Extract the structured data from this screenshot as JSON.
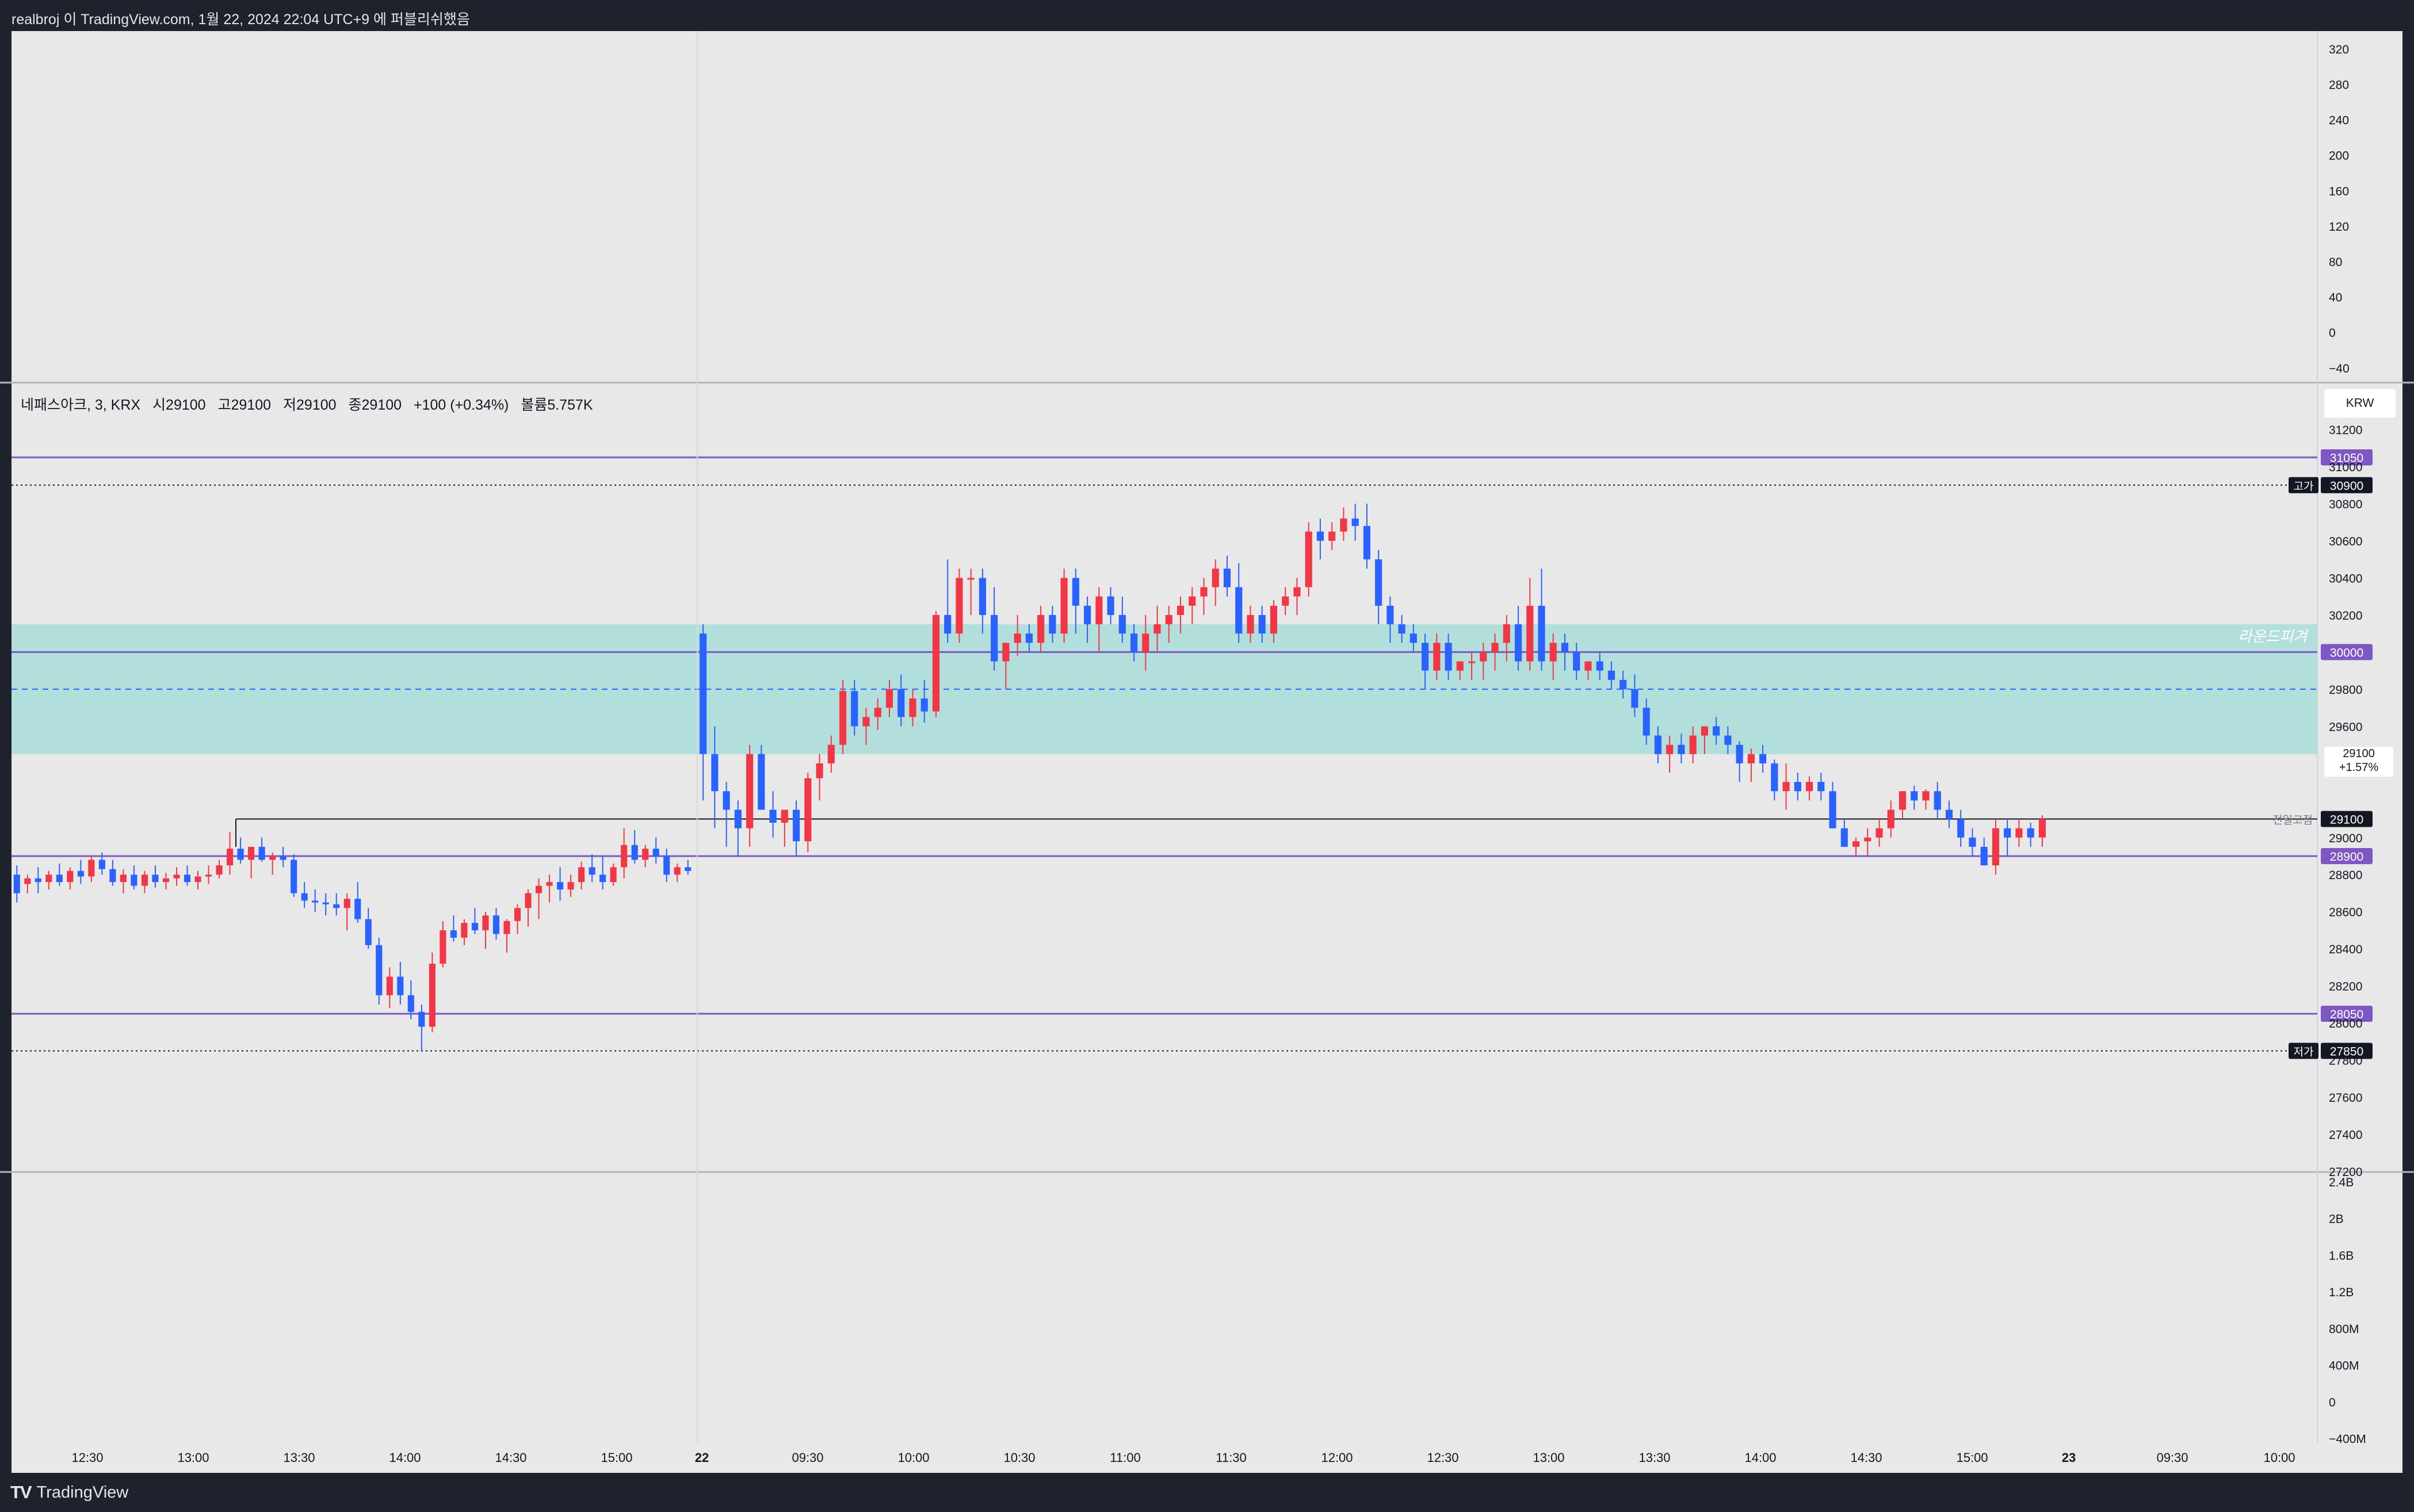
{
  "header": {
    "publish_text": "realbroj 이 TradingView.com, 1월 22, 2024 22:04 UTC+9 에 퍼블리쉬했음"
  },
  "footer": {
    "brand": "TradingView",
    "logo": "TV"
  },
  "legend": {
    "symbol": "네패스아크, 3, KRX",
    "open": "시29100",
    "high": "고29100",
    "low": "저29100",
    "close": "종29100",
    "change": "+100 (+0.34%)",
    "volume": "볼륨5.757K"
  },
  "currency": "KRW",
  "current_price": {
    "price": "29100",
    "change": "+1.57%"
  },
  "colors": {
    "up": "#f23645",
    "down": "#2962ff",
    "zone": "#b2dfdb",
    "level": "#7e57c2",
    "background": "#e8e8e8"
  },
  "chart_data": [
    {
      "type": "line",
      "panel": "upper-indicator",
      "y_ticks": [
        "320",
        "280",
        "240",
        "200",
        "160",
        "120",
        "80",
        "40",
        "0",
        "−40"
      ],
      "ylim": [
        -56,
        340
      ]
    },
    {
      "type": "candlestick",
      "panel": "price",
      "ylim": [
        27200,
        31450
      ],
      "y_ticks": [
        "31200",
        "31000",
        "30800",
        "30600",
        "30400",
        "30200",
        "29800",
        "29600",
        "29400",
        "29000",
        "28800",
        "28600",
        "28400",
        "28200",
        "28000",
        "27800",
        "27600",
        "27400",
        "27200"
      ],
      "x_ticks": [
        "12:30",
        "13:00",
        "13:30",
        "14:00",
        "14:30",
        "15:00",
        "22",
        "09:30",
        "10:00",
        "10:30",
        "11:00",
        "11:30",
        "12:00",
        "12:30",
        "13:00",
        "13:30",
        "14:00",
        "14:30",
        "15:00",
        "23",
        "09:30",
        "10:00"
      ],
      "levels": [
        {
          "price": 31050,
          "label": "31050",
          "style": "solid"
        },
        {
          "price": 30900,
          "label": "30900",
          "tag": "고가",
          "style": "dotted"
        },
        {
          "price": 30000,
          "label": "30000",
          "style": "solid"
        },
        {
          "price": 29100,
          "label": "29100",
          "tag": "전일고점",
          "style": "solid-black"
        },
        {
          "price": 28900,
          "label": "28900",
          "style": "solid"
        },
        {
          "price": 28050,
          "label": "28050",
          "style": "solid"
        },
        {
          "price": 27850,
          "label": "27850",
          "tag": "저가",
          "style": "dotted"
        }
      ],
      "zone": {
        "from": 29450,
        "to": 30150,
        "mid": 29800,
        "label": "라운드피겨"
      },
      "candles": [
        [
          28800,
          28850,
          28650,
          28700
        ],
        [
          28750,
          28800,
          28700,
          28780
        ],
        [
          28780,
          28840,
          28700,
          28760
        ],
        [
          28760,
          28820,
          28720,
          28800
        ],
        [
          28800,
          28860,
          28740,
          28760
        ],
        [
          28760,
          28840,
          28720,
          28820
        ],
        [
          28820,
          28880,
          28750,
          28790
        ],
        [
          28790,
          28900,
          28760,
          28880
        ],
        [
          28880,
          28920,
          28800,
          28830
        ],
        [
          28830,
          28880,
          28740,
          28760
        ],
        [
          28760,
          28830,
          28700,
          28800
        ],
        [
          28800,
          28850,
          28720,
          28740
        ],
        [
          28740,
          28820,
          28700,
          28800
        ],
        [
          28800,
          28850,
          28730,
          28760
        ],
        [
          28760,
          28810,
          28720,
          28780
        ],
        [
          28780,
          28840,
          28740,
          28800
        ],
        [
          28800,
          28850,
          28740,
          28760
        ],
        [
          28760,
          28820,
          28720,
          28790
        ],
        [
          28790,
          28850,
          28750,
          28800
        ],
        [
          28800,
          28880,
          28780,
          28850
        ],
        [
          28850,
          29030,
          28800,
          28940
        ],
        [
          28940,
          29000,
          28860,
          28880
        ],
        [
          28880,
          28920,
          28780,
          28950
        ],
        [
          28950,
          29000,
          28870,
          28880
        ],
        [
          28880,
          28920,
          28800,
          28900
        ],
        [
          28900,
          28950,
          28840,
          28880
        ],
        [
          28880,
          28910,
          28680,
          28700
        ],
        [
          28700,
          28760,
          28620,
          28660
        ],
        [
          28660,
          28720,
          28600,
          28650
        ],
        [
          28650,
          28700,
          28580,
          28640
        ],
        [
          28640,
          28700,
          28580,
          28620
        ],
        [
          28620,
          28700,
          28500,
          28670
        ],
        [
          28670,
          28760,
          28540,
          28560
        ],
        [
          28560,
          28620,
          28400,
          28420
        ],
        [
          28420,
          28460,
          28100,
          28150
        ],
        [
          28150,
          28300,
          28080,
          28250
        ],
        [
          28250,
          28330,
          28100,
          28150
        ],
        [
          28150,
          28230,
          28020,
          28060
        ],
        [
          28060,
          28100,
          27850,
          27980
        ],
        [
          27980,
          28380,
          27950,
          28320
        ],
        [
          28320,
          28550,
          28300,
          28500
        ],
        [
          28500,
          28580,
          28440,
          28460
        ],
        [
          28460,
          28560,
          28420,
          28540
        ],
        [
          28540,
          28620,
          28480,
          28500
        ],
        [
          28500,
          28600,
          28400,
          28580
        ],
        [
          28580,
          28620,
          28450,
          28480
        ],
        [
          28480,
          28560,
          28380,
          28550
        ],
        [
          28550,
          28640,
          28480,
          28620
        ],
        [
          28620,
          28720,
          28520,
          28700
        ],
        [
          28700,
          28780,
          28560,
          28740
        ],
        [
          28740,
          28800,
          28650,
          28760
        ],
        [
          28760,
          28840,
          28660,
          28720
        ],
        [
          28720,
          28800,
          28680,
          28760
        ],
        [
          28760,
          28870,
          28720,
          28840
        ],
        [
          28840,
          28910,
          28760,
          28800
        ],
        [
          28800,
          28900,
          28720,
          28760
        ],
        [
          28760,
          28860,
          28740,
          28840
        ],
        [
          28840,
          29050,
          28780,
          28960
        ],
        [
          28960,
          29040,
          28860,
          28880
        ],
        [
          28880,
          28960,
          28840,
          28940
        ],
        [
          28940,
          29000,
          28860,
          28900
        ],
        [
          28900,
          28940,
          28760,
          28800
        ],
        [
          28800,
          28860,
          28760,
          28840
        ],
        [
          28840,
          28880,
          28800,
          28820
        ]
      ],
      "candles_day2": [
        [
          30100,
          30150,
          29200,
          29450
        ],
        [
          29450,
          29600,
          29050,
          29250
        ],
        [
          29250,
          29300,
          28950,
          29150
        ],
        [
          29150,
          29200,
          28900,
          29050
        ],
        [
          29050,
          29500,
          28950,
          29450
        ],
        [
          29450,
          29500,
          29150,
          29150
        ],
        [
          29150,
          29250,
          29000,
          29080
        ],
        [
          29080,
          29120,
          28950,
          29150
        ],
        [
          29150,
          29200,
          28900,
          28980
        ],
        [
          28980,
          29350,
          28920,
          29320
        ],
        [
          29320,
          29450,
          29200,
          29400
        ],
        [
          29400,
          29550,
          29350,
          29500
        ],
        [
          29500,
          29850,
          29450,
          29790
        ],
        [
          29790,
          29850,
          29550,
          29600
        ],
        [
          29600,
          29700,
          29500,
          29650
        ],
        [
          29650,
          29750,
          29580,
          29700
        ],
        [
          29700,
          29850,
          29650,
          29800
        ],
        [
          29800,
          29880,
          29600,
          29650
        ],
        [
          29650,
          29800,
          29600,
          29750
        ],
        [
          29750,
          29850,
          29620,
          29680
        ],
        [
          29680,
          30220,
          29650,
          30200
        ],
        [
          30200,
          30500,
          30050,
          30100
        ],
        [
          30100,
          30450,
          30050,
          30400
        ],
        [
          30400,
          30450,
          30200,
          30400
        ],
        [
          30400,
          30450,
          30100,
          30200
        ],
        [
          30200,
          30350,
          29900,
          29950
        ],
        [
          29950,
          30000,
          29800,
          30050
        ],
        [
          30050,
          30200,
          29980,
          30100
        ],
        [
          30100,
          30150,
          30000,
          30050
        ],
        [
          30050,
          30250,
          30000,
          30200
        ],
        [
          30200,
          30250,
          30050,
          30100
        ],
        [
          30100,
          30450,
          30050,
          30400
        ],
        [
          30400,
          30450,
          30100,
          30250
        ],
        [
          30250,
          30300,
          30050,
          30150
        ],
        [
          30150,
          30350,
          30000,
          30300
        ],
        [
          30300,
          30350,
          30150,
          30200
        ],
        [
          30200,
          30300,
          30050,
          30100
        ],
        [
          30100,
          30150,
          29950,
          30000
        ],
        [
          30000,
          30200,
          29900,
          30100
        ],
        [
          30100,
          30250,
          30000,
          30150
        ],
        [
          30150,
          30250,
          30050,
          30200
        ],
        [
          30200,
          30300,
          30100,
          30250
        ],
        [
          30250,
          30350,
          30150,
          30300
        ],
        [
          30300,
          30400,
          30200,
          30350
        ],
        [
          30350,
          30500,
          30250,
          30450
        ],
        [
          30450,
          30520,
          30300,
          30350
        ],
        [
          30350,
          30480,
          30050,
          30100
        ],
        [
          30100,
          30250,
          30050,
          30200
        ],
        [
          30200,
          30250,
          30050,
          30100
        ],
        [
          30100,
          30280,
          30050,
          30250
        ],
        [
          30250,
          30350,
          30200,
          30300
        ],
        [
          30300,
          30400,
          30200,
          30350
        ],
        [
          30350,
          30700,
          30300,
          30650
        ],
        [
          30650,
          30720,
          30500,
          30600
        ],
        [
          30600,
          30700,
          30550,
          30650
        ],
        [
          30650,
          30780,
          30600,
          30720
        ],
        [
          30720,
          30800,
          30600,
          30680
        ],
        [
          30680,
          30800,
          30450,
          30500
        ],
        [
          30500,
          30550,
          30150,
          30250
        ],
        [
          30250,
          30300,
          30050,
          30150
        ],
        [
          30150,
          30200,
          30050,
          30100
        ],
        [
          30100,
          30150,
          30000,
          30050
        ],
        [
          30050,
          30100,
          29800,
          29900
        ],
        [
          29900,
          30100,
          29850,
          30050
        ],
        [
          30050,
          30100,
          29850,
          29900
        ],
        [
          29900,
          29950,
          29850,
          29950
        ],
        [
          29950,
          30000,
          29850,
          29950
        ],
        [
          29950,
          30050,
          29850,
          30000
        ],
        [
          30000,
          30100,
          29900,
          30050
        ],
        [
          30050,
          30200,
          29950,
          30150
        ],
        [
          30150,
          30250,
          29900,
          29950
        ],
        [
          29950,
          30400,
          29900,
          30250
        ],
        [
          30250,
          30450,
          29900,
          29950
        ],
        [
          29950,
          30100,
          29850,
          30050
        ],
        [
          30050,
          30100,
          29900,
          30000
        ],
        [
          30000,
          30050,
          29850,
          29900
        ],
        [
          29900,
          29950,
          29850,
          29950
        ],
        [
          29950,
          30000,
          29850,
          29900
        ],
        [
          29900,
          29950,
          29800,
          29850
        ],
        [
          29850,
          29900,
          29750,
          29800
        ],
        [
          29800,
          29880,
          29650,
          29700
        ],
        [
          29700,
          29750,
          29500,
          29550
        ],
        [
          29550,
          29600,
          29400,
          29450
        ],
        [
          29450,
          29550,
          29350,
          29500
        ],
        [
          29500,
          29560,
          29400,
          29450
        ],
        [
          29450,
          29600,
          29400,
          29550
        ],
        [
          29550,
          29600,
          29450,
          29600
        ],
        [
          29600,
          29650,
          29500,
          29550
        ],
        [
          29550,
          29600,
          29450,
          29500
        ],
        [
          29500,
          29520,
          29300,
          29400
        ],
        [
          29400,
          29480,
          29300,
          29450
        ],
        [
          29450,
          29500,
          29350,
          29400
        ],
        [
          29400,
          29420,
          29200,
          29250
        ],
        [
          29250,
          29400,
          29150,
          29300
        ],
        [
          29300,
          29350,
          29200,
          29250
        ],
        [
          29250,
          29330,
          29200,
          29300
        ],
        [
          29300,
          29350,
          29200,
          29250
        ],
        [
          29250,
          29300,
          29050,
          29050
        ],
        [
          29050,
          29100,
          28950,
          28950
        ],
        [
          28950,
          29000,
          28900,
          28980
        ],
        [
          28980,
          29050,
          28900,
          29000
        ],
        [
          29000,
          29100,
          28950,
          29050
        ],
        [
          29050,
          29200,
          29000,
          29150
        ],
        [
          29150,
          29250,
          29100,
          29250
        ],
        [
          29250,
          29280,
          29150,
          29200
        ],
        [
          29200,
          29260,
          29150,
          29250
        ],
        [
          29250,
          29300,
          29100,
          29150
        ],
        [
          29150,
          29200,
          29050,
          29100
        ],
        [
          29100,
          29150,
          28950,
          29000
        ],
        [
          29000,
          29050,
          28900,
          28950
        ],
        [
          28950,
          29000,
          28850,
          28850
        ],
        [
          28850,
          29100,
          28800,
          29050
        ],
        [
          29050,
          29100,
          28900,
          29000
        ],
        [
          29000,
          29100,
          28950,
          29050
        ],
        [
          29050,
          29080,
          28950,
          29000
        ],
        [
          29000,
          29120,
          28950,
          29100
        ]
      ]
    },
    {
      "type": "bar",
      "panel": "volume",
      "y_ticks": [
        "2.4B",
        "2B",
        "1.6B",
        "1.2B",
        "800M",
        "400M",
        "0",
        "−400M"
      ],
      "ylim": [
        -450000000,
        2500000000
      ],
      "values": []
    }
  ]
}
